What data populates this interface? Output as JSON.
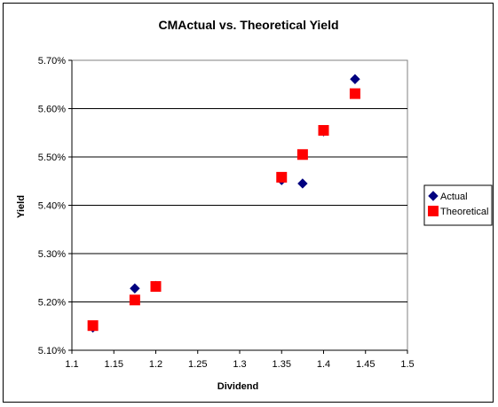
{
  "chart_data": {
    "type": "scatter",
    "title": "CMActual vs. Theoretical Yield",
    "xlabel": "Dividend",
    "ylabel": "Yield",
    "xlim": [
      1.1,
      1.5
    ],
    "ylim": [
      5.1,
      5.7
    ],
    "x_ticks": [
      "1.1",
      "1.15",
      "1.2",
      "1.25",
      "1.3",
      "1.35",
      "1.4",
      "1.45",
      "1.5"
    ],
    "x_tick_values": [
      1.1,
      1.15,
      1.2,
      1.25,
      1.3,
      1.35,
      1.4,
      1.45,
      1.5
    ],
    "y_ticks": [
      "5.10%",
      "5.20%",
      "5.30%",
      "5.40%",
      "5.50%",
      "5.60%",
      "5.70%"
    ],
    "y_tick_values": [
      5.1,
      5.2,
      5.3,
      5.4,
      5.5,
      5.6,
      5.7
    ],
    "grid": "horizontal",
    "legend_position": "right",
    "series": [
      {
        "name": "Actual",
        "marker": "diamond",
        "color": "#000080",
        "points": [
          {
            "x": 1.125,
            "y": 5.147
          },
          {
            "x": 1.175,
            "y": 5.228
          },
          {
            "x": 1.2,
            "y": 5.233
          },
          {
            "x": 1.35,
            "y": 5.452
          },
          {
            "x": 1.375,
            "y": 5.445
          },
          {
            "x": 1.4,
            "y": 5.553
          },
          {
            "x": 1.4375,
            "y": 5.661
          }
        ]
      },
      {
        "name": "Theoretical",
        "marker": "square",
        "color": "#ff0000",
        "points": [
          {
            "x": 1.125,
            "y": 5.151
          },
          {
            "x": 1.175,
            "y": 5.204
          },
          {
            "x": 1.2,
            "y": 5.232
          },
          {
            "x": 1.35,
            "y": 5.458
          },
          {
            "x": 1.375,
            "y": 5.505
          },
          {
            "x": 1.4,
            "y": 5.555
          },
          {
            "x": 1.4375,
            "y": 5.631
          }
        ]
      }
    ]
  }
}
